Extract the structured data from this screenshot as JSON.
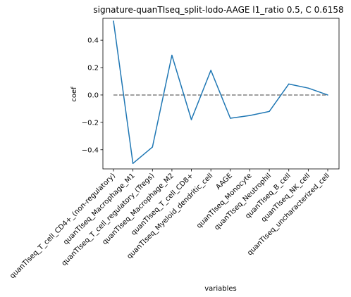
{
  "chart_data": {
    "type": "line",
    "title": "signature-quanTIseq_split-lodo-AAGE l1_ratio 0.5, C 0.6158",
    "xlabel": "variables",
    "ylabel": "coef",
    "ylim": [
      -0.54,
      0.56
    ],
    "yticks": [
      "0.4",
      "0.2",
      "0.0",
      "−0.2",
      "−0.4"
    ],
    "ytick_values": [
      0.4,
      0.2,
      0.0,
      -0.2,
      -0.4
    ],
    "categories": [
      "quanTIseq_T_cell_CD4+_(non-regulatory)",
      "quanTIseq_Macrophage_M1",
      "quanTIseq_T_cell_regulatory_(Tregs)",
      "quanTIseq_Macrophage_M2",
      "quanTIseq_T_cell_CD8+",
      "quanTIseq_Myeloid_dendritic_cell",
      "AAGE",
      "quanTIseq_Monocyte",
      "quanTIseq_Neutrophil",
      "quanTIseq_B_cell",
      "quanTIseq_NK_cell",
      "quanTIseq_uncharacterized_cell"
    ],
    "series": [
      {
        "values": [
          0.54,
          -0.5,
          -0.38,
          0.29,
          -0.18,
          0.18,
          -0.17,
          -0.15,
          -0.12,
          0.08,
          0.05,
          0.0
        ],
        "color": "#1f77b4"
      }
    ],
    "reference_line": {
      "y": 0.0,
      "style": "dashed",
      "color": "#808080"
    },
    "grid": false,
    "legend": "none"
  }
}
